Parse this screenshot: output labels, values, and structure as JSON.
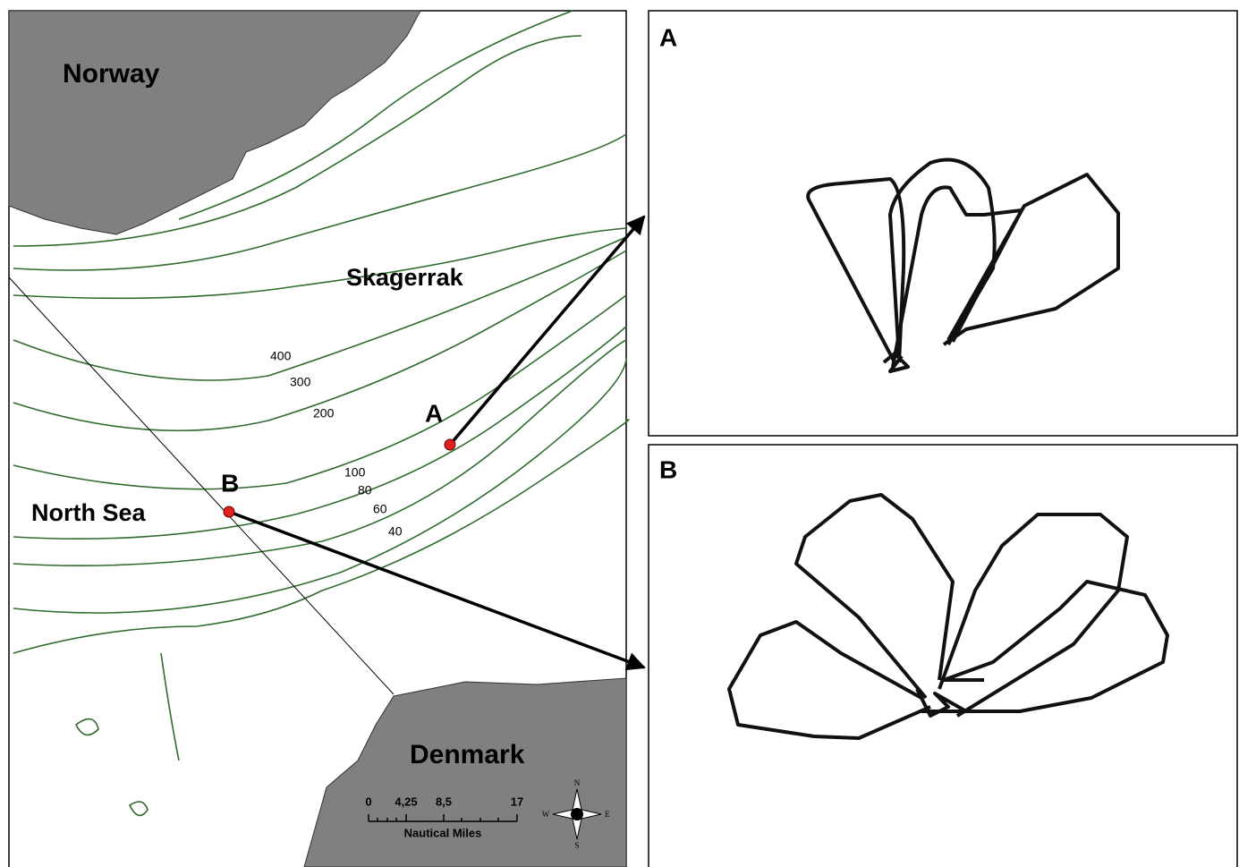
{
  "map": {
    "labels": {
      "norway": "Norway",
      "skagerrak": "Skagerrak",
      "north_sea": "North Sea",
      "denmark": "Denmark"
    },
    "sites": [
      "A",
      "B"
    ],
    "depth_contours": [
      400,
      300,
      200,
      100,
      80,
      60,
      40
    ],
    "scale_bar": {
      "ticks": [
        0,
        "4,25",
        "8,5",
        17
      ],
      "unit": "Nautical Miles"
    },
    "compass": {
      "north": "N",
      "east": "E",
      "south": "S",
      "west": "W"
    }
  },
  "panels": [
    {
      "label": "A"
    },
    {
      "label": "B"
    }
  ]
}
